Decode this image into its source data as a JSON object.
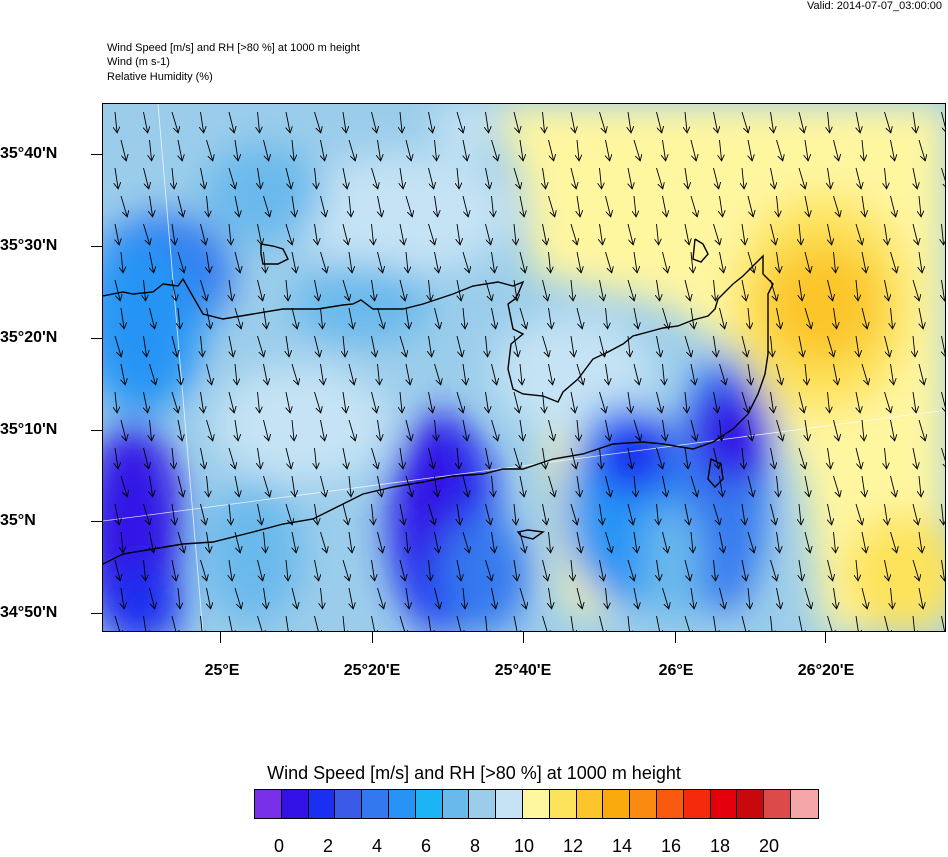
{
  "valid_time": "Valid: 2014-07-07_03:00:00",
  "header": {
    "line1": "Wind Speed [m/s] and RH [>80 %] at 1000 m height",
    "line2": "Wind   (m s-1)",
    "line3": "Relative Humidity   (%)"
  },
  "axes": {
    "lat_labels": [
      "35°40'N",
      "35°30'N",
      "35°20'N",
      "35°10'N",
      "35°N",
      "34°50'N"
    ],
    "lon_labels": [
      "25°E",
      "25°20'E",
      "25°40'E",
      "26°E",
      "26°20'E"
    ]
  },
  "colorbar": {
    "title": "Wind Speed [m/s] and RH [>80 %] at 1000 m height",
    "colors": [
      "#7a2fe8",
      "#3212e6",
      "#1b2ff0",
      "#3a5ae8",
      "#3478ef",
      "#2794f5",
      "#1db4f5",
      "#6ab9ec",
      "#9bcdeb",
      "#c5e3f4",
      "#fff6a0",
      "#fde35c",
      "#fcc62a",
      "#fbaa0e",
      "#fb8a10",
      "#fa5a10",
      "#f52a0c",
      "#e3000a",
      "#c8080c",
      "#dc4a4a",
      "#f5a6a6"
    ],
    "labels": [
      "0",
      "2",
      "4",
      "6",
      "8",
      "10",
      "12",
      "14",
      "16",
      "18",
      "20"
    ]
  }
}
